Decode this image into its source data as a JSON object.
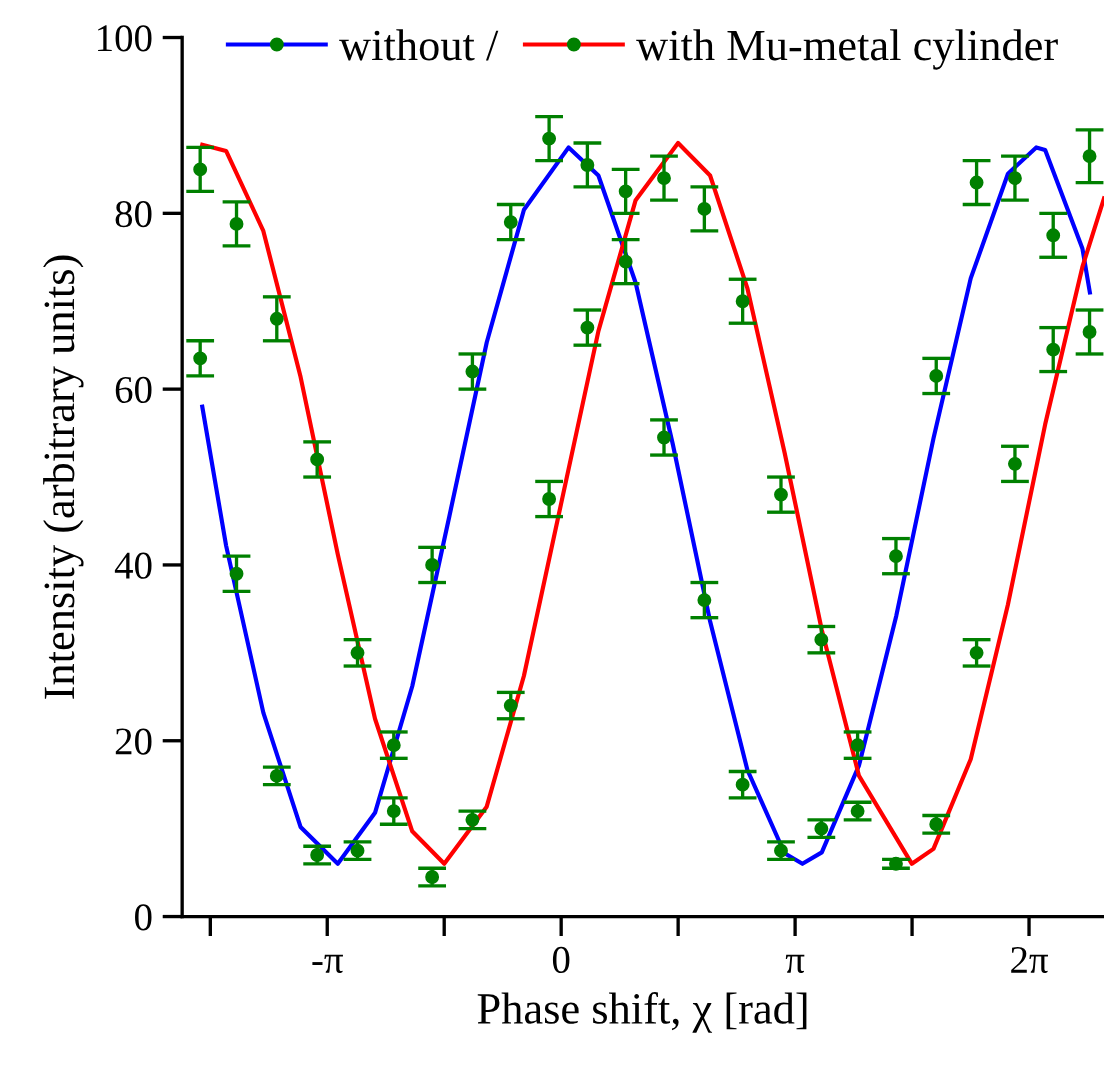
{
  "chart_data": {
    "type": "line",
    "xlabel": "Phase shift, χ [rad]",
    "ylabel": "Intensity (arbitrary units)",
    "xlim": [
      -5.09,
      7.29
    ],
    "ylim": [
      0,
      100
    ],
    "xticks": [
      {
        "value": -4.712,
        "label": null
      },
      {
        "value": -3.1416,
        "label": "-π"
      },
      {
        "value": -1.5708,
        "label": null
      },
      0,
      {
        "value": 1.5708,
        "label": null
      },
      {
        "value": 3.1416,
        "label": "π"
      },
      {
        "value": 4.7124,
        "label": null
      },
      {
        "value": 6.2832,
        "label": "2π"
      }
    ],
    "yticks": [
      0,
      20,
      40,
      60,
      80,
      100
    ],
    "grid": false,
    "legend": "top",
    "line_style": "solid",
    "series": [
      {
        "name": "without /",
        "color": "#0000ff",
        "marker": "none",
        "x": [
          -4.82,
          -4.5,
          -4.0,
          -3.5,
          -3.0,
          -2.5,
          -2.0,
          -1.5,
          -1.0,
          -0.5,
          0.1,
          0.5,
          1.0,
          1.5,
          2.0,
          2.5,
          3.0,
          3.24,
          3.5,
          4.0,
          4.5,
          5.0,
          5.5,
          6.0,
          6.38,
          6.5,
          7.0,
          7.1
        ],
        "values": [
          58,
          42.2,
          23.2,
          10.2,
          6.0,
          11.8,
          26.2,
          45.6,
          65.3,
          80.4,
          87.5,
          84.3,
          72.1,
          53.7,
          33.6,
          16.7,
          7.2,
          6.0,
          7.3,
          17.2,
          34.2,
          54.4,
          72.6,
          84.5,
          87.5,
          87.2,
          76,
          71
        ]
      },
      {
        "name": "with Mu-metal cylinder",
        "color": "#ff0000",
        "marker": "none",
        "x": [
          -4.82,
          -4.5,
          -4.0,
          -3.5,
          -3.0,
          -2.5,
          -2.0,
          -1.57,
          -1.0,
          -0.5,
          0,
          0.5,
          1.0,
          1.57,
          2.0,
          2.5,
          3.0,
          3.5,
          4.0,
          4.71,
          5.0,
          5.5,
          6.0,
          6.5,
          7.0,
          7.29
        ],
        "values": [
          87.8,
          87.1,
          78.0,
          61.4,
          41.2,
          22.5,
          9.7,
          6.0,
          12.5,
          27.4,
          47,
          66.6,
          81.5,
          88,
          84.3,
          71.5,
          52.8,
          32.6,
          16.0,
          6.0,
          7.7,
          17.9,
          35.5,
          56.0,
          73.9,
          81.7
        ]
      },
      {
        "type": "scatter",
        "color": "#008000",
        "marker": "circle",
        "x": [
          -4.848,
          -4.36,
          -3.819,
          -3.277,
          -2.735,
          -2.248,
          -1.733,
          -1.192,
          -0.677,
          -0.162,
          0.352,
          0.866,
          1.381,
          1.923,
          2.437,
          2.952,
          3.494,
          3.981,
          4.496,
          5.037,
          5.579,
          6.094,
          6.608,
          7.096
        ],
        "values": [
          63.5,
          39,
          16,
          7,
          7.5,
          19.5,
          40,
          62,
          79,
          88.5,
          85.5,
          74.5,
          54.5,
          36,
          15,
          7.5,
          10,
          19.5,
          41,
          61.5,
          83.5,
          84,
          77.5,
          66.5
        ],
        "errors": [
          2,
          2,
          1,
          1,
          1,
          1.5,
          2,
          2,
          2,
          2.5,
          2.5,
          2.5,
          2,
          2,
          1.5,
          1,
          1,
          1.5,
          2,
          2,
          2.5,
          2.5,
          2.5,
          2.5
        ]
      },
      {
        "type": "scatter",
        "color": "#008000",
        "marker": "circle",
        "x": [
          -4.848,
          -4.36,
          -3.819,
          -3.277,
          -2.735,
          -2.248,
          -1.733,
          -1.192,
          -0.677,
          -0.162,
          0.352,
          0.866,
          1.381,
          1.923,
          2.437,
          2.952,
          3.494,
          3.981,
          4.496,
          5.037,
          5.579,
          6.094,
          6.608,
          7.096
        ],
        "values": [
          85,
          78.8,
          68,
          52,
          30,
          12,
          4.5,
          11,
          24,
          47.5,
          67,
          82.5,
          84,
          80.5,
          70,
          48,
          31.5,
          12,
          6,
          10.5,
          30,
          51.5,
          64.5,
          86.5
        ],
        "errors": [
          2.5,
          2.5,
          2.5,
          2,
          1.5,
          1.5,
          1,
          1,
          1.5,
          2,
          2,
          2.5,
          2.5,
          2.5,
          2.5,
          2,
          1.5,
          1,
          0.5,
          1,
          1.5,
          2,
          2.5,
          3
        ]
      }
    ]
  }
}
